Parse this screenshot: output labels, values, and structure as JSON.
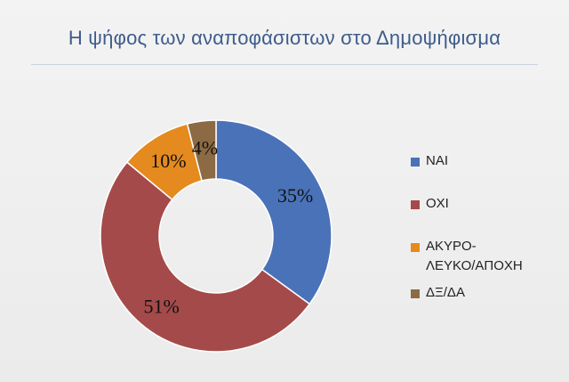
{
  "chart_data": {
    "type": "pie",
    "variant": "doughnut",
    "title": "Η ψήφος των αναποφάσιστων στο Δημοψήφισμα",
    "categories": [
      "ΝΑΙ",
      "ΟΧΙ",
      "ΑΚΥΡΟ-ΛΕΥΚΟ/ΑΠΟΧΗ",
      "ΔΞ/ΔΑ"
    ],
    "values": [
      35,
      51,
      10,
      4
    ],
    "data_labels": [
      "35%",
      "51%",
      "10%",
      "4%"
    ],
    "colors": [
      "#4a72b8",
      "#a54a4a",
      "#e58a1f",
      "#8c6a44"
    ],
    "legend_placement": "right",
    "legend": [
      {
        "label_lines": [
          "ΝΑΙ"
        ],
        "color": "#4a72b8"
      },
      {
        "label_lines": [
          "ΟΧΙ"
        ],
        "color": "#a54a4a"
      },
      {
        "label_lines": [
          "ΑΚΥΡΟ-",
          "ΛΕΥΚΟ/ΑΠΟΧΗ"
        ],
        "color": "#e58a1f"
      },
      {
        "label_lines": [
          "ΔΞ/ΔΑ"
        ],
        "color": "#8c6a44"
      }
    ]
  }
}
